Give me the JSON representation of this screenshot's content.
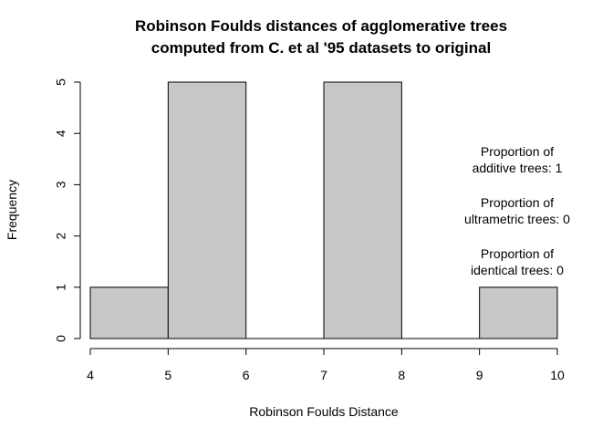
{
  "chart_data": {
    "type": "bar",
    "title_lines": [
      "Robinson Foulds distances of agglomerative trees",
      "computed from C. et al '95 datasets to original"
    ],
    "xlabel": "Robinson Foulds Distance",
    "ylabel": "Frequency",
    "bins": [
      {
        "from": 4,
        "to": 5,
        "count": 1
      },
      {
        "from": 5,
        "to": 6,
        "count": 5
      },
      {
        "from": 6,
        "to": 7,
        "count": 0
      },
      {
        "from": 7,
        "to": 8,
        "count": 5
      },
      {
        "from": 8,
        "to": 9,
        "count": 0
      },
      {
        "from": 9,
        "to": 10,
        "count": 1
      }
    ],
    "x_ticks": [
      "4",
      "5",
      "6",
      "7",
      "8",
      "9",
      "10"
    ],
    "y_ticks": [
      "0",
      "1",
      "2",
      "3",
      "4",
      "5"
    ],
    "xlim": [
      4,
      10
    ],
    "ylim": [
      0,
      5
    ],
    "bar_color": "#c8c8c8",
    "grid": false,
    "annotations": [
      [
        "Proportion of",
        "additive trees: 1"
      ],
      [
        "Proportion of",
        "ultrametric trees: 0"
      ],
      [
        "Proportion of",
        "identical trees: 0"
      ]
    ]
  }
}
